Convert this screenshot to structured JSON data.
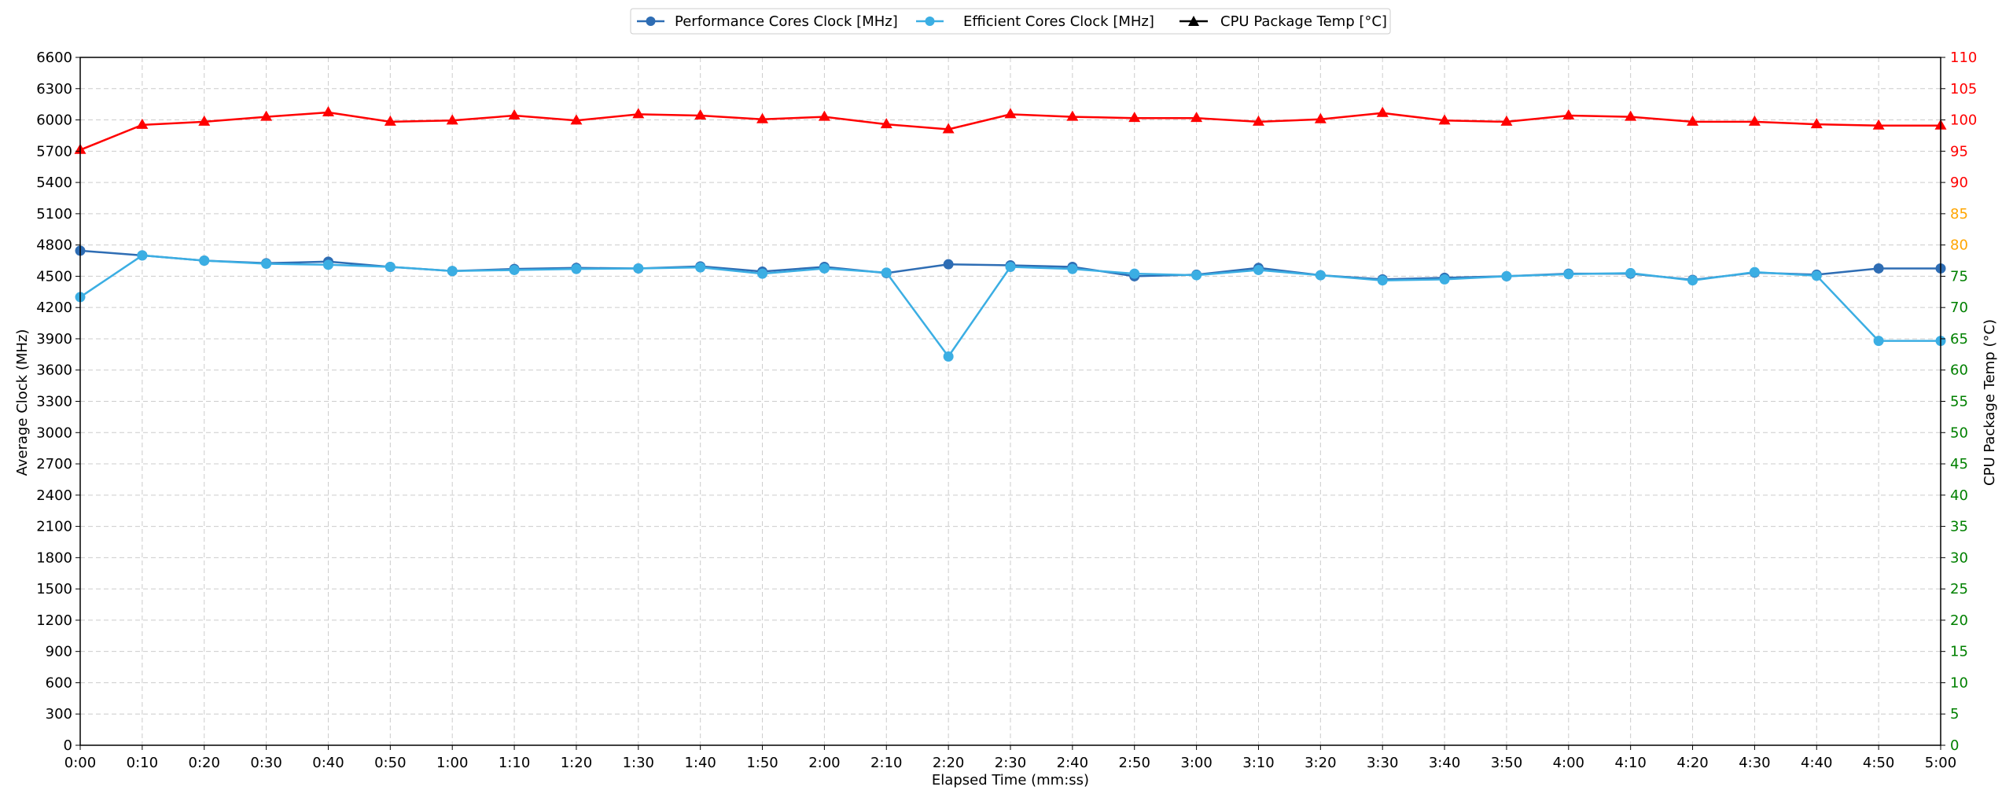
{
  "chart_data": {
    "type": "line",
    "title": "",
    "xlabel": "Elapsed Time (mm:ss)",
    "ylabel": "Average Clock (MHz)",
    "y2label": "CPU Package Temp (°C)",
    "ylim": [
      0,
      6600
    ],
    "y2lim": [
      0,
      110
    ],
    "grid": true,
    "legend_position": "top-center",
    "x": [
      "0:00",
      "0:10",
      "0:20",
      "0:30",
      "0:40",
      "0:50",
      "1:00",
      "1:10",
      "1:20",
      "1:30",
      "1:40",
      "1:50",
      "2:00",
      "2:10",
      "2:20",
      "2:30",
      "2:40",
      "2:50",
      "3:00",
      "3:10",
      "3:20",
      "3:30",
      "3:40",
      "3:50",
      "4:00",
      "4:10",
      "4:20",
      "4:30",
      "4:40",
      "4:50",
      "5:00"
    ],
    "yticks": [
      0,
      300,
      600,
      900,
      1200,
      1500,
      1800,
      2100,
      2400,
      2700,
      3000,
      3300,
      3600,
      3900,
      4200,
      4500,
      4800,
      5100,
      5400,
      5700,
      6000,
      6300,
      6600
    ],
    "y2ticks": [
      {
        "value": 0,
        "color": "#008000"
      },
      {
        "value": 5,
        "color": "#008000"
      },
      {
        "value": 10,
        "color": "#008000"
      },
      {
        "value": 15,
        "color": "#008000"
      },
      {
        "value": 20,
        "color": "#008000"
      },
      {
        "value": 25,
        "color": "#008000"
      },
      {
        "value": 30,
        "color": "#008000"
      },
      {
        "value": 35,
        "color": "#008000"
      },
      {
        "value": 40,
        "color": "#008000"
      },
      {
        "value": 45,
        "color": "#008000"
      },
      {
        "value": 50,
        "color": "#008000"
      },
      {
        "value": 55,
        "color": "#008000"
      },
      {
        "value": 60,
        "color": "#008000"
      },
      {
        "value": 65,
        "color": "#008000"
      },
      {
        "value": 70,
        "color": "#008000"
      },
      {
        "value": 75,
        "color": "#008000"
      },
      {
        "value": 80,
        "color": "#FFA500"
      },
      {
        "value": 85,
        "color": "#FFA500"
      },
      {
        "value": 90,
        "color": "#FF0000"
      },
      {
        "value": 95,
        "color": "#FF0000"
      },
      {
        "value": 100,
        "color": "#FF0000"
      },
      {
        "value": 105,
        "color": "#FF0000"
      },
      {
        "value": 110,
        "color": "#FF0000"
      }
    ],
    "series": [
      {
        "name": "Performance Cores Clock [MHz]",
        "axis": "left",
        "color": "#2E6DB4",
        "marker": "circle",
        "values": [
          4745,
          4700,
          4650,
          4625,
          4640,
          4590,
          4550,
          4570,
          4580,
          4575,
          4595,
          4545,
          4590,
          4530,
          4615,
          4605,
          4590,
          4500,
          4515,
          4580,
          4510,
          4470,
          4485,
          4500,
          4525,
          4525,
          4465,
          4535,
          4515,
          4575,
          4575
        ]
      },
      {
        "name": "Efficient Cores Clock [MHz]",
        "axis": "left",
        "color": "#3BAEE3",
        "marker": "circle",
        "values": [
          4300,
          4700,
          4650,
          4620,
          4610,
          4590,
          4550,
          4560,
          4570,
          4575,
          4585,
          4525,
          4575,
          4535,
          3730,
          4590,
          4570,
          4525,
          4510,
          4560,
          4510,
          4460,
          4470,
          4500,
          4520,
          4530,
          4460,
          4540,
          4505,
          3880,
          3880
        ]
      },
      {
        "name": "CPU Package Temp [°C]",
        "axis": "right",
        "color": "#FF0000",
        "legend_color": "#000000",
        "marker": "triangle",
        "values": [
          95.2,
          99.2,
          99.7,
          100.5,
          101.2,
          99.7,
          99.9,
          100.7,
          99.9,
          100.9,
          100.7,
          100.1,
          100.5,
          99.3,
          98.5,
          100.9,
          100.5,
          100.3,
          100.3,
          99.7,
          100.1,
          101.1,
          99.9,
          99.7,
          100.7,
          100.5,
          99.7,
          99.7,
          99.3,
          99.1,
          99.1
        ]
      }
    ]
  }
}
